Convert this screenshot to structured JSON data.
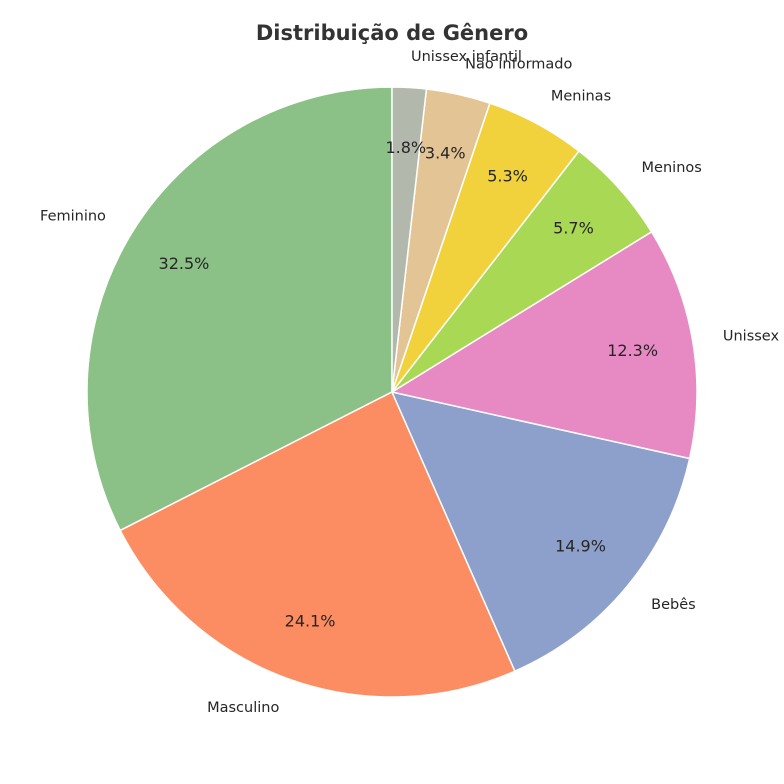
{
  "chart_data": {
    "type": "pie",
    "title": "Distribuição de Gênero",
    "start_angle_deg": 90,
    "direction": "counterclockwise",
    "categories": [
      "Feminino",
      "Masculino",
      "Bebês",
      "Unissex",
      "Meninos",
      "Meninas",
      "Não informado",
      "Unissex infantil"
    ],
    "values": [
      32.5,
      24.1,
      14.9,
      12.3,
      5.7,
      5.3,
      3.4,
      1.8
    ],
    "value_labels": [
      "32.5%",
      "24.1%",
      "14.9%",
      "12.3%",
      "5.7%",
      "5.3%",
      "3.4%",
      "1.8%"
    ],
    "colors": [
      "#8bc087",
      "#fc8d62",
      "#8da0cb",
      "#e78ac3",
      "#a8d854",
      "#f1d13c",
      "#e3c494",
      "#b3b8ad"
    ],
    "edge_color": "#ffffff"
  }
}
